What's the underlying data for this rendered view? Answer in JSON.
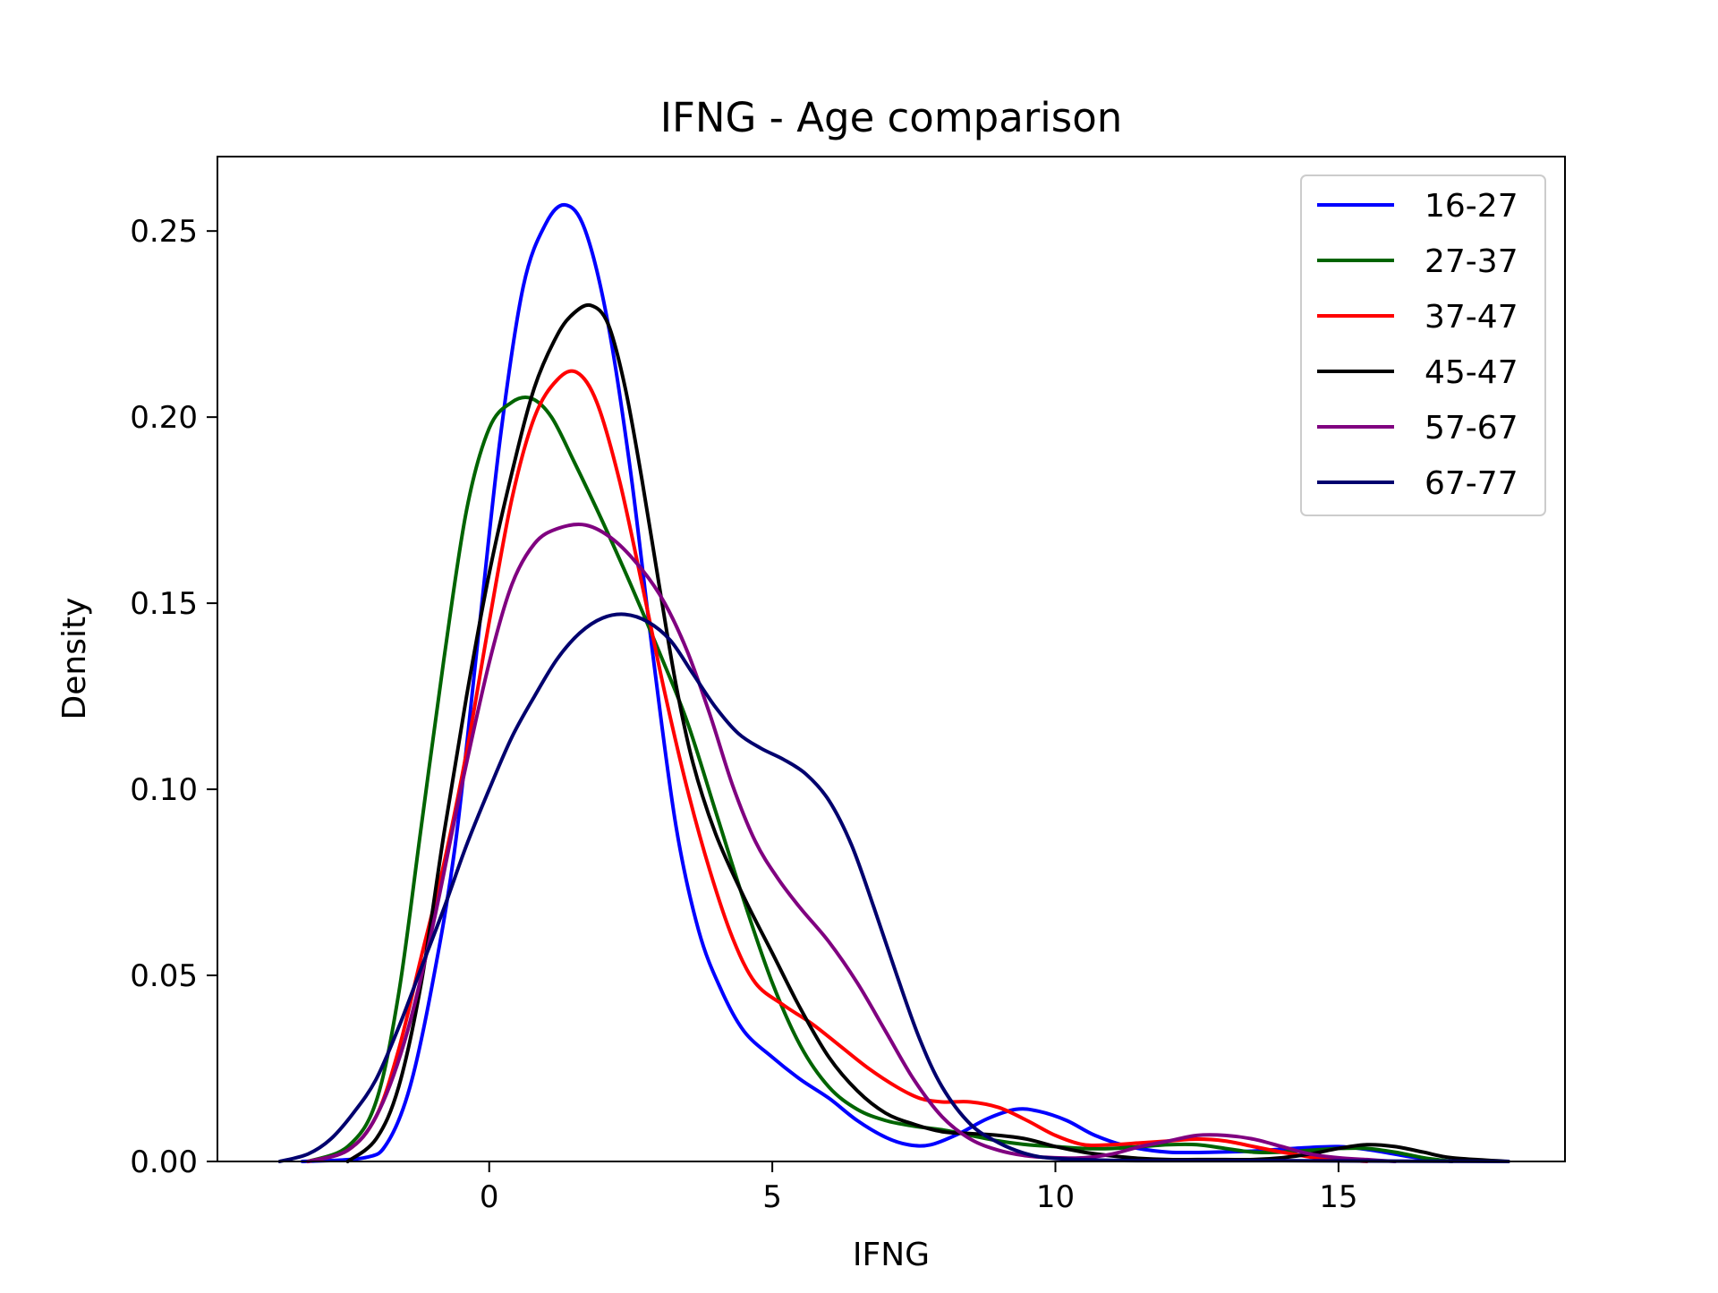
{
  "chart_data": {
    "type": "line",
    "title": "IFNG - Age comparison",
    "xlabel": "IFNG",
    "ylabel": "Density",
    "xlim": [
      -4.8,
      19.0
    ],
    "ylim": [
      0.0,
      0.27
    ],
    "x_ticks": [
      0,
      5,
      10,
      15
    ],
    "x_tick_labels": [
      "0",
      "5",
      "10",
      "15"
    ],
    "y_ticks": [
      0.0,
      0.05,
      0.1,
      0.15,
      0.2,
      0.25
    ],
    "y_tick_labels": [
      "0.00",
      "0.05",
      "0.10",
      "0.15",
      "0.20",
      "0.25"
    ],
    "grid": false,
    "legend_position": "top-right",
    "series": [
      {
        "name": "16-27",
        "color": "#0000ff",
        "points": [
          [
            -3.3,
            0.0
          ],
          [
            -2.2,
            0.001
          ],
          [
            -1.8,
            0.005
          ],
          [
            -1.4,
            0.02
          ],
          [
            -1.0,
            0.048
          ],
          [
            -0.6,
            0.085
          ],
          [
            -0.2,
            0.14
          ],
          [
            0.2,
            0.195
          ],
          [
            0.6,
            0.235
          ],
          [
            1.0,
            0.252
          ],
          [
            1.35,
            0.257
          ],
          [
            1.7,
            0.25
          ],
          [
            2.1,
            0.225
          ],
          [
            2.5,
            0.185
          ],
          [
            2.9,
            0.135
          ],
          [
            3.3,
            0.09
          ],
          [
            3.7,
            0.062
          ],
          [
            4.1,
            0.046
          ],
          [
            4.5,
            0.035
          ],
          [
            5.0,
            0.028
          ],
          [
            5.5,
            0.022
          ],
          [
            6.0,
            0.017
          ],
          [
            6.5,
            0.011
          ],
          [
            7.0,
            0.0065
          ],
          [
            7.4,
            0.0045
          ],
          [
            7.8,
            0.0045
          ],
          [
            8.3,
            0.0075
          ],
          [
            8.8,
            0.0115
          ],
          [
            9.3,
            0.014
          ],
          [
            9.7,
            0.0135
          ],
          [
            10.2,
            0.011
          ],
          [
            10.7,
            0.007
          ],
          [
            11.3,
            0.004
          ],
          [
            12.0,
            0.0025
          ],
          [
            12.8,
            0.0025
          ],
          [
            13.5,
            0.0028
          ],
          [
            14.2,
            0.0035
          ],
          [
            15.0,
            0.004
          ],
          [
            15.6,
            0.003
          ],
          [
            16.3,
            0.0012
          ],
          [
            17.0,
            0.0
          ]
        ]
      },
      {
        "name": "27-37",
        "color": "#006400",
        "points": [
          [
            -3.2,
            0.0
          ],
          [
            -2.5,
            0.004
          ],
          [
            -2.0,
            0.016
          ],
          [
            -1.6,
            0.045
          ],
          [
            -1.2,
            0.09
          ],
          [
            -0.8,
            0.135
          ],
          [
            -0.4,
            0.175
          ],
          [
            0.0,
            0.197
          ],
          [
            0.4,
            0.204
          ],
          [
            0.75,
            0.205
          ],
          [
            1.1,
            0.2
          ],
          [
            1.5,
            0.188
          ],
          [
            2.0,
            0.172
          ],
          [
            2.5,
            0.155
          ],
          [
            3.0,
            0.137
          ],
          [
            3.5,
            0.118
          ],
          [
            4.0,
            0.094
          ],
          [
            4.5,
            0.07
          ],
          [
            5.0,
            0.048
          ],
          [
            5.5,
            0.031
          ],
          [
            6.0,
            0.02
          ],
          [
            6.5,
            0.014
          ],
          [
            7.0,
            0.011
          ],
          [
            7.5,
            0.0095
          ],
          [
            8.0,
            0.0085
          ],
          [
            8.5,
            0.007
          ],
          [
            9.0,
            0.0055
          ],
          [
            9.5,
            0.0045
          ],
          [
            10.0,
            0.004
          ],
          [
            10.5,
            0.0035
          ],
          [
            11.0,
            0.0035
          ],
          [
            11.5,
            0.004
          ],
          [
            12.0,
            0.0045
          ],
          [
            12.5,
            0.0045
          ],
          [
            13.0,
            0.0035
          ],
          [
            13.5,
            0.0025
          ],
          [
            14.0,
            0.0025
          ],
          [
            14.5,
            0.003
          ],
          [
            15.0,
            0.0035
          ],
          [
            15.5,
            0.0035
          ],
          [
            16.0,
            0.0025
          ],
          [
            16.5,
            0.001
          ],
          [
            17.0,
            0.0
          ]
        ]
      },
      {
        "name": "37-47",
        "color": "#ff0000",
        "points": [
          [
            -3.2,
            0.0
          ],
          [
            -2.5,
            0.003
          ],
          [
            -2.0,
            0.012
          ],
          [
            -1.6,
            0.03
          ],
          [
            -1.2,
            0.055
          ],
          [
            -0.8,
            0.08
          ],
          [
            -0.4,
            0.11
          ],
          [
            0.0,
            0.145
          ],
          [
            0.4,
            0.178
          ],
          [
            0.8,
            0.2
          ],
          [
            1.2,
            0.21
          ],
          [
            1.55,
            0.212
          ],
          [
            1.9,
            0.204
          ],
          [
            2.3,
            0.183
          ],
          [
            2.7,
            0.155
          ],
          [
            3.1,
            0.126
          ],
          [
            3.5,
            0.1
          ],
          [
            3.9,
            0.078
          ],
          [
            4.3,
            0.06
          ],
          [
            4.7,
            0.048
          ],
          [
            5.2,
            0.042
          ],
          [
            5.7,
            0.037
          ],
          [
            6.2,
            0.031
          ],
          [
            6.7,
            0.025
          ],
          [
            7.2,
            0.02
          ],
          [
            7.6,
            0.017
          ],
          [
            8.0,
            0.016
          ],
          [
            8.5,
            0.016
          ],
          [
            9.0,
            0.0145
          ],
          [
            9.5,
            0.011
          ],
          [
            10.0,
            0.007
          ],
          [
            10.5,
            0.0045
          ],
          [
            11.0,
            0.0045
          ],
          [
            11.5,
            0.005
          ],
          [
            12.0,
            0.0055
          ],
          [
            12.5,
            0.006
          ],
          [
            13.0,
            0.0055
          ],
          [
            13.5,
            0.004
          ],
          [
            14.0,
            0.0025
          ],
          [
            14.5,
            0.0012
          ],
          [
            15.0,
            0.0005
          ],
          [
            15.5,
            0.0
          ]
        ]
      },
      {
        "name": "45-47",
        "color": "#000000",
        "points": [
          [
            -2.5,
            0.0
          ],
          [
            -2.0,
            0.006
          ],
          [
            -1.6,
            0.02
          ],
          [
            -1.2,
            0.048
          ],
          [
            -0.8,
            0.088
          ],
          [
            -0.4,
            0.125
          ],
          [
            0.0,
            0.158
          ],
          [
            0.4,
            0.185
          ],
          [
            0.8,
            0.208
          ],
          [
            1.2,
            0.222
          ],
          [
            1.5,
            0.228
          ],
          [
            1.8,
            0.23
          ],
          [
            2.1,
            0.225
          ],
          [
            2.4,
            0.208
          ],
          [
            2.7,
            0.183
          ],
          [
            3.0,
            0.155
          ],
          [
            3.3,
            0.128
          ],
          [
            3.6,
            0.107
          ],
          [
            4.0,
            0.088
          ],
          [
            4.5,
            0.071
          ],
          [
            5.0,
            0.056
          ],
          [
            5.5,
            0.041
          ],
          [
            6.0,
            0.028
          ],
          [
            6.5,
            0.019
          ],
          [
            7.0,
            0.013
          ],
          [
            7.5,
            0.01
          ],
          [
            8.0,
            0.008
          ],
          [
            8.5,
            0.0075
          ],
          [
            9.0,
            0.007
          ],
          [
            9.5,
            0.006
          ],
          [
            10.0,
            0.004
          ],
          [
            10.5,
            0.0025
          ],
          [
            11.0,
            0.0015
          ],
          [
            11.5,
            0.0008
          ],
          [
            12.0,
            0.0005
          ],
          [
            12.5,
            0.0005
          ],
          [
            13.0,
            0.0005
          ],
          [
            13.5,
            0.0005
          ],
          [
            14.0,
            0.001
          ],
          [
            14.5,
            0.002
          ],
          [
            15.0,
            0.0035
          ],
          [
            15.5,
            0.0045
          ],
          [
            16.0,
            0.004
          ],
          [
            16.5,
            0.0025
          ],
          [
            17.0,
            0.001
          ],
          [
            18.0,
            0.0
          ]
        ]
      },
      {
        "name": "57-67",
        "color": "#800080",
        "points": [
          [
            -3.2,
            0.0
          ],
          [
            -2.5,
            0.003
          ],
          [
            -2.0,
            0.012
          ],
          [
            -1.5,
            0.032
          ],
          [
            -1.0,
            0.063
          ],
          [
            -0.5,
            0.1
          ],
          [
            0.0,
            0.134
          ],
          [
            0.4,
            0.155
          ],
          [
            0.8,
            0.166
          ],
          [
            1.2,
            0.17
          ],
          [
            1.7,
            0.171
          ],
          [
            2.2,
            0.167
          ],
          [
            2.7,
            0.159
          ],
          [
            3.1,
            0.15
          ],
          [
            3.5,
            0.137
          ],
          [
            3.9,
            0.12
          ],
          [
            4.3,
            0.101
          ],
          [
            4.7,
            0.086
          ],
          [
            5.1,
            0.076
          ],
          [
            5.5,
            0.068
          ],
          [
            6.0,
            0.059
          ],
          [
            6.5,
            0.048
          ],
          [
            7.0,
            0.035
          ],
          [
            7.5,
            0.022
          ],
          [
            8.0,
            0.012
          ],
          [
            8.5,
            0.006
          ],
          [
            9.0,
            0.003
          ],
          [
            9.5,
            0.0015
          ],
          [
            10.0,
            0.001
          ],
          [
            10.5,
            0.001
          ],
          [
            11.0,
            0.002
          ],
          [
            11.5,
            0.004
          ],
          [
            12.0,
            0.0055
          ],
          [
            12.5,
            0.007
          ],
          [
            13.0,
            0.007
          ],
          [
            13.5,
            0.006
          ],
          [
            14.0,
            0.004
          ],
          [
            14.5,
            0.002
          ],
          [
            15.0,
            0.001
          ],
          [
            15.5,
            0.0005
          ],
          [
            16.0,
            0.0
          ]
        ]
      },
      {
        "name": "67-77",
        "color": "#00006e",
        "points": [
          [
            -3.7,
            0.0
          ],
          [
            -3.2,
            0.002
          ],
          [
            -2.8,
            0.006
          ],
          [
            -2.4,
            0.013
          ],
          [
            -2.0,
            0.022
          ],
          [
            -1.6,
            0.036
          ],
          [
            -1.2,
            0.052
          ],
          [
            -0.8,
            0.068
          ],
          [
            -0.4,
            0.085
          ],
          [
            0.0,
            0.1
          ],
          [
            0.4,
            0.114
          ],
          [
            0.8,
            0.125
          ],
          [
            1.2,
            0.135
          ],
          [
            1.6,
            0.142
          ],
          [
            2.0,
            0.146
          ],
          [
            2.4,
            0.147
          ],
          [
            2.8,
            0.145
          ],
          [
            3.2,
            0.14
          ],
          [
            3.6,
            0.131
          ],
          [
            4.0,
            0.122
          ],
          [
            4.4,
            0.115
          ],
          [
            4.8,
            0.111
          ],
          [
            5.2,
            0.108
          ],
          [
            5.6,
            0.104
          ],
          [
            6.0,
            0.097
          ],
          [
            6.4,
            0.085
          ],
          [
            6.8,
            0.068
          ],
          [
            7.2,
            0.05
          ],
          [
            7.6,
            0.033
          ],
          [
            8.0,
            0.02
          ],
          [
            8.5,
            0.01
          ],
          [
            9.0,
            0.005
          ],
          [
            9.5,
            0.002
          ],
          [
            10.0,
            0.0008
          ],
          [
            11.0,
            0.0003
          ],
          [
            12.0,
            0.0002
          ],
          [
            14.0,
            0.0002
          ],
          [
            16.0,
            0.0001
          ],
          [
            18.0,
            0.0
          ]
        ]
      }
    ]
  }
}
